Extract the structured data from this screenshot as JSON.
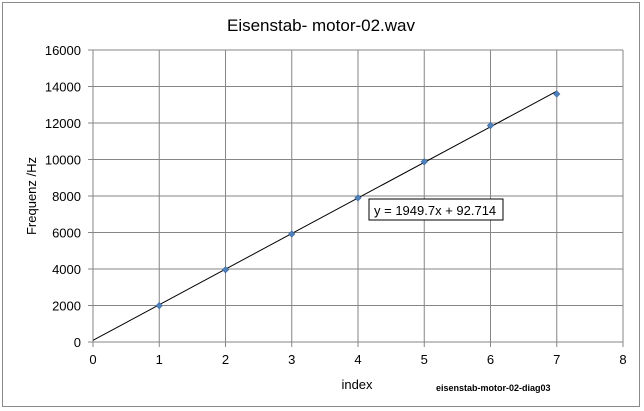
{
  "chart_data": {
    "type": "scatter",
    "title": "Eisenstab- motor-02.wav",
    "xlabel": "index",
    "ylabel": "Frequenz /Hz",
    "xlim": [
      0,
      8
    ],
    "ylim": [
      0,
      16000
    ],
    "x_ticks": [
      0,
      1,
      2,
      3,
      4,
      5,
      6,
      7,
      8
    ],
    "y_ticks": [
      0,
      2000,
      4000,
      6000,
      8000,
      10000,
      12000,
      14000,
      16000
    ],
    "grid": true,
    "legend": "none",
    "marker_color": "#4f81bd",
    "line_color": "#000000",
    "series": [
      {
        "x": [
          1,
          2,
          3,
          4,
          5,
          6,
          7
        ],
        "y": [
          1990,
          3960,
          5920,
          7900,
          9880,
          11860,
          13590
        ]
      }
    ],
    "trendline": {
      "slope": 1949.7,
      "intercept": 92.714,
      "equation": "y = 1949.7x + 92.714"
    },
    "annotation": "eisenstab-motor-02-diag03"
  }
}
